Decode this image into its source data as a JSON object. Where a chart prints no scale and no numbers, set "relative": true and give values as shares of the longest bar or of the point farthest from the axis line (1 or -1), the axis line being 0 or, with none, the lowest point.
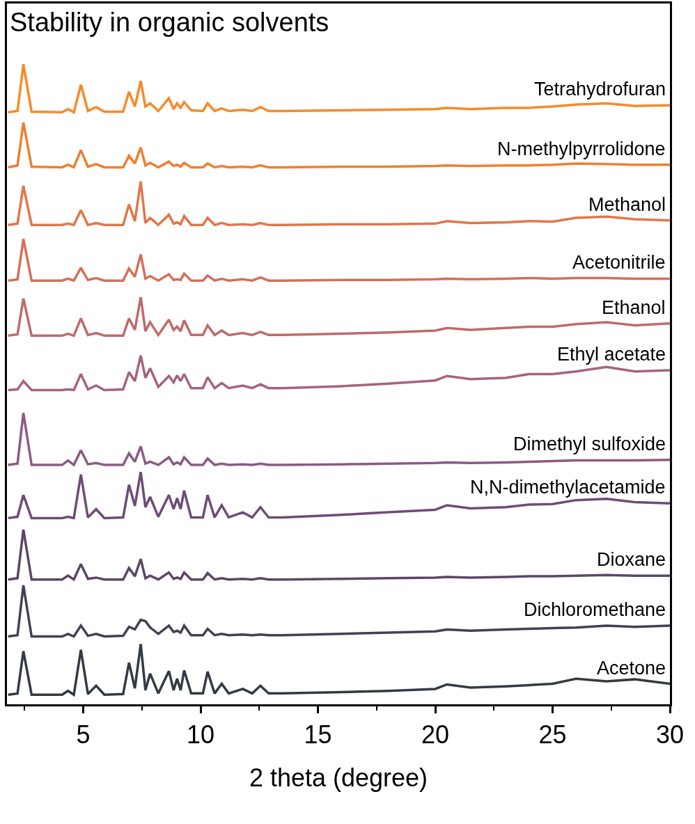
{
  "chart_data": {
    "type": "line",
    "title": "Stability in organic solvents",
    "xlabel": "2 theta (degree)",
    "relative": true,
    "legend": false,
    "marker": "none",
    "line_style": "solid",
    "xlim": [
      1.75,
      30
    ],
    "xticks": [
      5,
      10,
      15,
      20,
      25,
      30
    ],
    "x": [
      1.8,
      2.2,
      2.45,
      2.8,
      4.1,
      4.35,
      4.6,
      4.9,
      5.2,
      5.55,
      5.9,
      6.7,
      6.95,
      7.2,
      7.45,
      7.65,
      7.85,
      8.2,
      8.65,
      8.85,
      9.0,
      9.15,
      9.3,
      9.6,
      10.1,
      10.3,
      10.6,
      10.9,
      11.2,
      11.8,
      12.2,
      12.55,
      12.9,
      13.5,
      16,
      18,
      20,
      20.5,
      21.5,
      23,
      24,
      25,
      26,
      27.3,
      28.5,
      30
    ],
    "series": [
      {
        "name": "Tetrahydrofuran",
        "color": "#f78a2a",
        "values": [
          0.925,
          0.927,
          1.0,
          0.926,
          0.925,
          0.93,
          0.925,
          0.968,
          0.927,
          0.933,
          0.926,
          0.926,
          0.957,
          0.934,
          0.974,
          0.934,
          0.939,
          0.927,
          0.947,
          0.93,
          0.939,
          0.932,
          0.941,
          0.928,
          0.927,
          0.939,
          0.927,
          0.931,
          0.927,
          0.929,
          0.927,
          0.933,
          0.927,
          0.927,
          0.928,
          0.929,
          0.93,
          0.932,
          0.93,
          0.932,
          0.932,
          0.934,
          0.937,
          0.939,
          0.935,
          0.936
        ]
      },
      {
        "name": "N-methylpyrrolidone",
        "color": "#f07f30",
        "values": [
          0.839,
          0.842,
          0.909,
          0.84,
          0.839,
          0.843,
          0.839,
          0.866,
          0.84,
          0.844,
          0.839,
          0.839,
          0.857,
          0.845,
          0.87,
          0.842,
          0.846,
          0.839,
          0.848,
          0.841,
          0.843,
          0.84,
          0.846,
          0.839,
          0.839,
          0.845,
          0.839,
          0.841,
          0.839,
          0.84,
          0.839,
          0.842,
          0.839,
          0.839,
          0.84,
          0.84,
          0.841,
          0.842,
          0.841,
          0.842,
          0.842,
          0.843,
          0.845,
          0.844,
          0.843,
          0.843
        ]
      },
      {
        "name": "Methanol",
        "color": "#e2764a",
        "values": [
          0.749,
          0.751,
          0.81,
          0.749,
          0.749,
          0.751,
          0.749,
          0.772,
          0.749,
          0.752,
          0.749,
          0.749,
          0.781,
          0.755,
          0.817,
          0.752,
          0.76,
          0.749,
          0.765,
          0.751,
          0.753,
          0.75,
          0.763,
          0.749,
          0.749,
          0.76,
          0.749,
          0.752,
          0.749,
          0.75,
          0.749,
          0.752,
          0.749,
          0.749,
          0.75,
          0.75,
          0.751,
          0.755,
          0.752,
          0.753,
          0.755,
          0.754,
          0.76,
          0.762,
          0.758,
          0.756
        ]
      },
      {
        "name": "Acetonitrile",
        "color": "#d4705a",
        "values": [
          0.662,
          0.664,
          0.727,
          0.662,
          0.662,
          0.665,
          0.662,
          0.682,
          0.663,
          0.666,
          0.662,
          0.662,
          0.681,
          0.668,
          0.703,
          0.665,
          0.669,
          0.662,
          0.672,
          0.663,
          0.664,
          0.663,
          0.673,
          0.662,
          0.662,
          0.67,
          0.662,
          0.665,
          0.662,
          0.664,
          0.662,
          0.667,
          0.662,
          0.662,
          0.663,
          0.663,
          0.664,
          0.665,
          0.664,
          0.665,
          0.666,
          0.665,
          0.666,
          0.666,
          0.665,
          0.665
        ]
      },
      {
        "name": "Ethanol",
        "color": "#bf6a6c",
        "values": [
          0.576,
          0.578,
          0.634,
          0.576,
          0.576,
          0.579,
          0.576,
          0.603,
          0.577,
          0.58,
          0.576,
          0.576,
          0.603,
          0.585,
          0.636,
          0.583,
          0.597,
          0.577,
          0.601,
          0.585,
          0.59,
          0.583,
          0.6,
          0.577,
          0.577,
          0.592,
          0.577,
          0.584,
          0.577,
          0.58,
          0.577,
          0.582,
          0.577,
          0.577,
          0.579,
          0.581,
          0.584,
          0.588,
          0.585,
          0.588,
          0.59,
          0.59,
          0.594,
          0.597,
          0.592,
          0.595
        ]
      },
      {
        "name": "Ethyl acetate",
        "color": "#a6627e",
        "values": [
          0.491,
          0.492,
          0.505,
          0.491,
          0.491,
          0.492,
          0.491,
          0.516,
          0.492,
          0.498,
          0.491,
          0.492,
          0.519,
          0.505,
          0.545,
          0.51,
          0.525,
          0.496,
          0.513,
          0.503,
          0.514,
          0.505,
          0.516,
          0.494,
          0.494,
          0.511,
          0.494,
          0.502,
          0.494,
          0.498,
          0.494,
          0.5,
          0.494,
          0.494,
          0.497,
          0.501,
          0.506,
          0.513,
          0.508,
          0.51,
          0.516,
          0.516,
          0.52,
          0.527,
          0.52,
          0.522
        ]
      },
      {
        "name": "Dimethyl sulfoxide",
        "color": "#8c5a82",
        "values": [
          0.374,
          0.376,
          0.455,
          0.374,
          0.374,
          0.381,
          0.374,
          0.397,
          0.375,
          0.377,
          0.374,
          0.374,
          0.392,
          0.379,
          0.403,
          0.376,
          0.379,
          0.374,
          0.386,
          0.375,
          0.378,
          0.375,
          0.386,
          0.374,
          0.374,
          0.384,
          0.374,
          0.376,
          0.374,
          0.375,
          0.374,
          0.376,
          0.374,
          0.374,
          0.375,
          0.376,
          0.377,
          0.378,
          0.377,
          0.378,
          0.379,
          0.38,
          0.381,
          0.381,
          0.381,
          0.382
        ]
      },
      {
        "name": "N,N-dimethylacetamide",
        "color": "#6e4c76",
        "values": [
          0.291,
          0.293,
          0.327,
          0.291,
          0.291,
          0.293,
          0.291,
          0.359,
          0.292,
          0.305,
          0.291,
          0.292,
          0.343,
          0.31,
          0.363,
          0.308,
          0.324,
          0.293,
          0.327,
          0.305,
          0.322,
          0.305,
          0.334,
          0.292,
          0.292,
          0.327,
          0.292,
          0.311,
          0.292,
          0.3,
          0.292,
          0.308,
          0.292,
          0.292,
          0.296,
          0.3,
          0.304,
          0.311,
          0.306,
          0.308,
          0.312,
          0.313,
          0.319,
          0.321,
          0.316,
          0.314
        ]
      },
      {
        "name": "Dioxane",
        "color": "#5a4767",
        "values": [
          0.195,
          0.197,
          0.273,
          0.195,
          0.195,
          0.201,
          0.195,
          0.219,
          0.196,
          0.198,
          0.195,
          0.195,
          0.213,
          0.2,
          0.227,
          0.197,
          0.201,
          0.195,
          0.206,
          0.196,
          0.198,
          0.196,
          0.206,
          0.195,
          0.195,
          0.205,
          0.195,
          0.197,
          0.195,
          0.196,
          0.195,
          0.197,
          0.195,
          0.195,
          0.196,
          0.197,
          0.198,
          0.199,
          0.198,
          0.199,
          0.2,
          0.2,
          0.201,
          0.202,
          0.201,
          0.201
        ]
      },
      {
        "name": "Dichloromethane",
        "color": "#463f54",
        "values": [
          0.106,
          0.108,
          0.186,
          0.106,
          0.106,
          0.11,
          0.106,
          0.123,
          0.107,
          0.11,
          0.106,
          0.107,
          0.121,
          0.117,
          0.132,
          0.13,
          0.12,
          0.11,
          0.123,
          0.113,
          0.115,
          0.112,
          0.123,
          0.108,
          0.108,
          0.118,
          0.108,
          0.11,
          0.108,
          0.109,
          0.108,
          0.109,
          0.108,
          0.108,
          0.11,
          0.112,
          0.114,
          0.117,
          0.115,
          0.117,
          0.118,
          0.119,
          0.12,
          0.123,
          0.121,
          0.123
        ]
      },
      {
        "name": "Acetone",
        "color": "#333a44",
        "values": [
          0.015,
          0.017,
          0.083,
          0.015,
          0.015,
          0.021,
          0.015,
          0.085,
          0.016,
          0.029,
          0.015,
          0.016,
          0.065,
          0.025,
          0.094,
          0.022,
          0.048,
          0.017,
          0.052,
          0.022,
          0.04,
          0.022,
          0.053,
          0.017,
          0.017,
          0.051,
          0.017,
          0.032,
          0.017,
          0.024,
          0.017,
          0.029,
          0.017,
          0.017,
          0.019,
          0.021,
          0.024,
          0.031,
          0.026,
          0.028,
          0.03,
          0.032,
          0.04,
          0.036,
          0.039,
          0.032
        ]
      }
    ]
  }
}
